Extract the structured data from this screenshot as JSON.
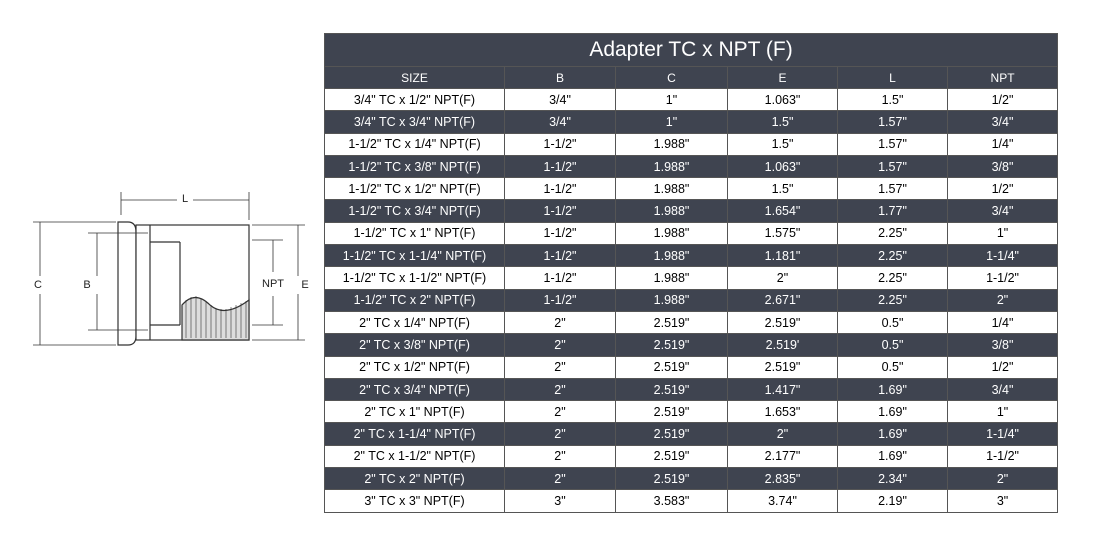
{
  "diagram": {
    "labels": {
      "L": "L",
      "C": "C",
      "B": "B",
      "NPT": "NPT",
      "E": "E"
    }
  },
  "table": {
    "title": "Adapter TC x NPT (F)",
    "header": [
      "SIZE",
      "B",
      "C",
      "E",
      "L",
      "NPT"
    ],
    "rows": [
      [
        "3/4\" TC x 1/2\" NPT(F)",
        "3/4\"",
        "1\"",
        "1.063\"",
        "1.5\"",
        "1/2\""
      ],
      [
        "3/4\" TC x 3/4\" NPT(F)",
        "3/4\"",
        "1\"",
        "1.5\"",
        "1.57\"",
        "3/4\""
      ],
      [
        "1-1/2\" TC x 1/4\" NPT(F)",
        "1-1/2\"",
        "1.988\"",
        "1.5\"",
        "1.57\"",
        "1/4\""
      ],
      [
        "1-1/2\" TC x 3/8\" NPT(F)",
        "1-1/2\"",
        "1.988\"",
        "1.063\"",
        "1.57\"",
        "3/8\""
      ],
      [
        "1-1/2\" TC x 1/2\" NPT(F)",
        "1-1/2\"",
        "1.988\"",
        "1.5\"",
        "1.57\"",
        "1/2\""
      ],
      [
        "1-1/2\" TC x 3/4\" NPT(F)",
        "1-1/2\"",
        "1.988\"",
        "1.654\"",
        "1.77\"",
        "3/4\""
      ],
      [
        "1-1/2\" TC x 1\" NPT(F)",
        "1-1/2\"",
        "1.988\"",
        "1.575\"",
        "2.25\"",
        "1\""
      ],
      [
        "1-1/2\" TC x 1-1/4\" NPT(F)",
        "1-1/2\"",
        "1.988\"",
        "1.181\"",
        "2.25\"",
        "1-1/4\""
      ],
      [
        "1-1/2\" TC x 1-1/2\" NPT(F)",
        "1-1/2\"",
        "1.988\"",
        "2\"",
        "2.25\"",
        "1-1/2\""
      ],
      [
        "1-1/2\" TC x 2\" NPT(F)",
        "1-1/2\"",
        "1.988\"",
        "2.671\"",
        "2.25\"",
        "2\""
      ],
      [
        "2\" TC x 1/4\" NPT(F)",
        "2\"",
        "2.519\"",
        "2.519\"",
        "0.5\"",
        "1/4\""
      ],
      [
        "2\" TC x 3/8\" NPT(F)",
        "2\"",
        "2.519\"",
        "2.519'",
        "0.5\"",
        "3/8\""
      ],
      [
        "2\" TC x 1/2\" NPT(F)",
        "2\"",
        "2.519\"",
        "2.519\"",
        "0.5\"",
        "1/2\""
      ],
      [
        "2\" TC x 3/4\" NPT(F)",
        "2\"",
        "2.519\"",
        "1.417\"",
        "1.69\"",
        "3/4\""
      ],
      [
        "2\" TC x 1\" NPT(F)",
        "2\"",
        "2.519\"",
        "1.653\"",
        "1.69\"",
        "1\""
      ],
      [
        "2\" TC x 1-1/4\" NPT(F)",
        "2\"",
        "2.519\"",
        "2\"",
        "1.69\"",
        "1-1/4\""
      ],
      [
        "2\" TC x 1-1/2\" NPT(F)",
        "2\"",
        "2.519\"",
        "2.177\"",
        "1.69\"",
        "1-1/2\""
      ],
      [
        "2\" TC x 2\" NPT(F)",
        "2\"",
        "2.519\"",
        "2.835\"",
        "2.34\"",
        "2\""
      ],
      [
        "3\" TC x 3\" NPT(F)",
        "3\"",
        "3.583\"",
        "3.74\"",
        "2.19\"",
        "3\""
      ]
    ]
  }
}
